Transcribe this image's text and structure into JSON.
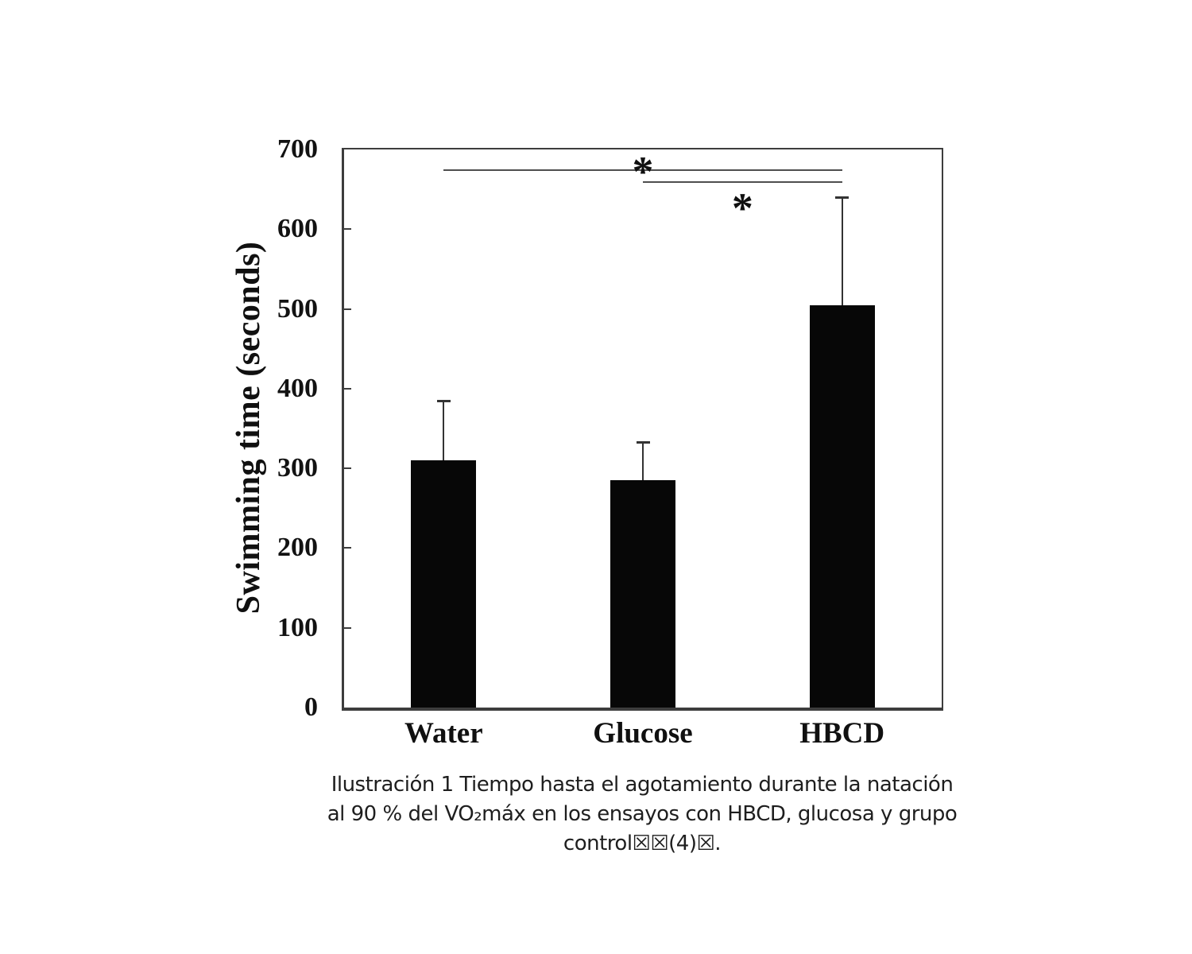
{
  "figure": {
    "caption_lines": [
      "Ilustración 1 Tiempo hasta el agotamiento durante la natación",
      "al 90 % del VO₂máx en los ensayos con HBCD, glucosa y grupo",
      "control☒☒(4)☒."
    ]
  },
  "chart_data": {
    "type": "bar",
    "title": "",
    "xlabel": "",
    "ylabel": "Swimming time (seconds)",
    "categories": [
      "Water",
      "Glucose",
      "HBCD"
    ],
    "values": [
      310,
      285,
      505
    ],
    "error_plus": [
      75,
      48,
      135
    ],
    "ylim": [
      0,
      700
    ],
    "yticks": [
      0,
      100,
      200,
      300,
      400,
      500,
      600,
      700
    ],
    "grid": false,
    "legend": null,
    "bar_color": "#070707",
    "significance": [
      {
        "from": "Water",
        "to": "HBCD",
        "marker": "*",
        "line_value": 674,
        "marker_position": "above"
      },
      {
        "from": "Glucose",
        "to": "HBCD",
        "marker": "*",
        "line_value": 659,
        "marker_position": "below"
      }
    ]
  },
  "colors": {
    "background": "#ffffff",
    "axis": "#3d3d3d",
    "bar": "#070707",
    "error_bar": "#333333",
    "significance_line": "#4f4f4f",
    "text": "#101010"
  }
}
